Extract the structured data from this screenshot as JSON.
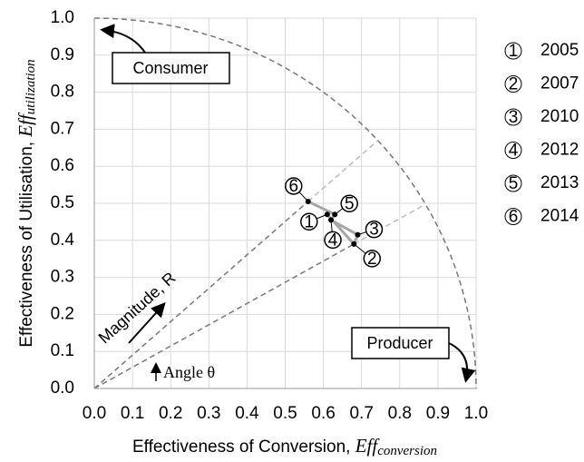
{
  "chart_data": {
    "type": "scatter",
    "x": [
      0.61,
      0.68,
      0.69,
      0.62,
      0.63,
      0.56
    ],
    "y": [
      0.47,
      0.39,
      0.415,
      0.455,
      0.47,
      0.505
    ],
    "point_labels": [
      "1",
      "2",
      "3",
      "4",
      "5",
      "6"
    ],
    "years": [
      "2005",
      "2007",
      "2010",
      "2012",
      "2013",
      "2014"
    ],
    "xlim": [
      0,
      1
    ],
    "ylim": [
      0,
      1
    ],
    "xticks": [
      {
        "value": 0,
        "label": "0.0"
      },
      0.1,
      0.2,
      0.3,
      0.4,
      0.5,
      0.6,
      0.7,
      0.8,
      0.9,
      {
        "value": 1,
        "label": "1.0"
      }
    ],
    "yticks": [
      {
        "value": 0,
        "label": "0.0"
      },
      0.1,
      0.2,
      0.3,
      0.4,
      0.5,
      0.6,
      0.7,
      0.8,
      0.9,
      {
        "value": 1,
        "label": "1.0"
      }
    ],
    "grid": true,
    "color": "#000000",
    "line_color": "#a6a6a6",
    "x_label": "Effectiveness of Conversion, ",
    "x_label_symbol": "Eff",
    "x_label_subscript": "conversion",
    "y_label": "Effectiveness of Utilisation, ",
    "y_label_symbol": "Eff",
    "y_label_subscript": "utilization",
    "annotations": {
      "consumer": "Consumer",
      "producer": "Producer",
      "magnitude": "Magnitude, R",
      "angle": "Angle θ"
    }
  }
}
